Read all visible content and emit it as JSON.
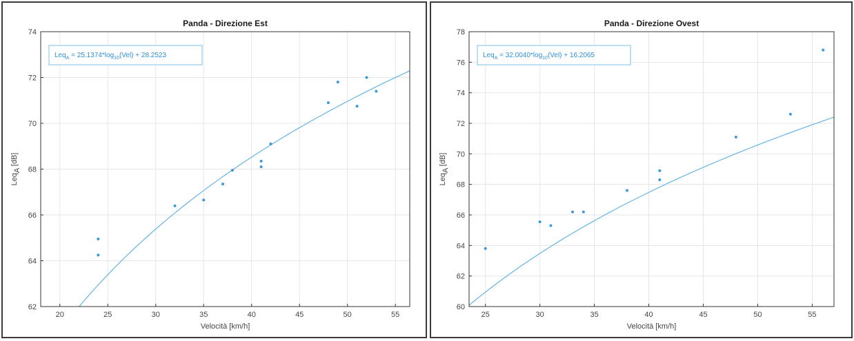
{
  "chart_data": [
    {
      "type": "scatter",
      "title": "Panda - Direzione Est",
      "xlabel": "Velocità [km/h]",
      "ylabel": "Leq_A [dB]",
      "ylabel_main": "Leq",
      "ylabel_sub": "A",
      "ylabel_unit": " [dB]",
      "xlim": [
        18,
        56.5
      ],
      "ylim": [
        62,
        74
      ],
      "xticks": [
        20,
        25,
        30,
        35,
        40,
        45,
        50,
        55
      ],
      "yticks": [
        62,
        64,
        66,
        68,
        70,
        72,
        74
      ],
      "grid": true,
      "equation": {
        "lhs": "Leq",
        "lhs_sub": "A",
        "mid": " = 25.1374*log",
        "mid_sub": "10",
        "rhs": "(Vel) + 28.2523"
      },
      "fit": {
        "slope": 25.1374,
        "intercept": 28.2523
      },
      "series": [
        {
          "x": [
            24,
            24,
            32,
            35,
            37,
            38,
            41,
            41,
            42,
            48,
            49,
            51,
            52,
            53
          ],
          "y": [
            64.95,
            64.25,
            66.4,
            66.65,
            67.35,
            67.95,
            68.1,
            68.35,
            69.1,
            70.9,
            71.8,
            70.75,
            72.0,
            71.4
          ]
        }
      ]
    },
    {
      "type": "scatter",
      "title": "Panda - Direzione Ovest",
      "xlabel": "Velocità [km/h]",
      "ylabel": "Leq_A [dB]",
      "ylabel_main": "Leq",
      "ylabel_sub": "A",
      "ylabel_unit": " [dB]",
      "xlim": [
        23.5,
        57
      ],
      "ylim": [
        60,
        78
      ],
      "xticks": [
        25,
        30,
        35,
        40,
        45,
        50,
        55
      ],
      "yticks": [
        60,
        62,
        64,
        66,
        68,
        70,
        72,
        74,
        76,
        78
      ],
      "grid": true,
      "equation": {
        "lhs": "Leq",
        "lhs_sub": "A",
        "mid": " = 32.0040*log",
        "mid_sub": "10",
        "rhs": "(Vel) + 16.2065"
      },
      "fit": {
        "slope": 32.004,
        "intercept": 16.2065
      },
      "series": [
        {
          "x": [
            25,
            30,
            31,
            33,
            34,
            38,
            41,
            41,
            48,
            53,
            56
          ],
          "y": [
            63.8,
            65.55,
            65.3,
            66.2,
            66.2,
            67.6,
            68.9,
            68.3,
            71.1,
            72.6,
            76.8
          ]
        }
      ]
    }
  ]
}
